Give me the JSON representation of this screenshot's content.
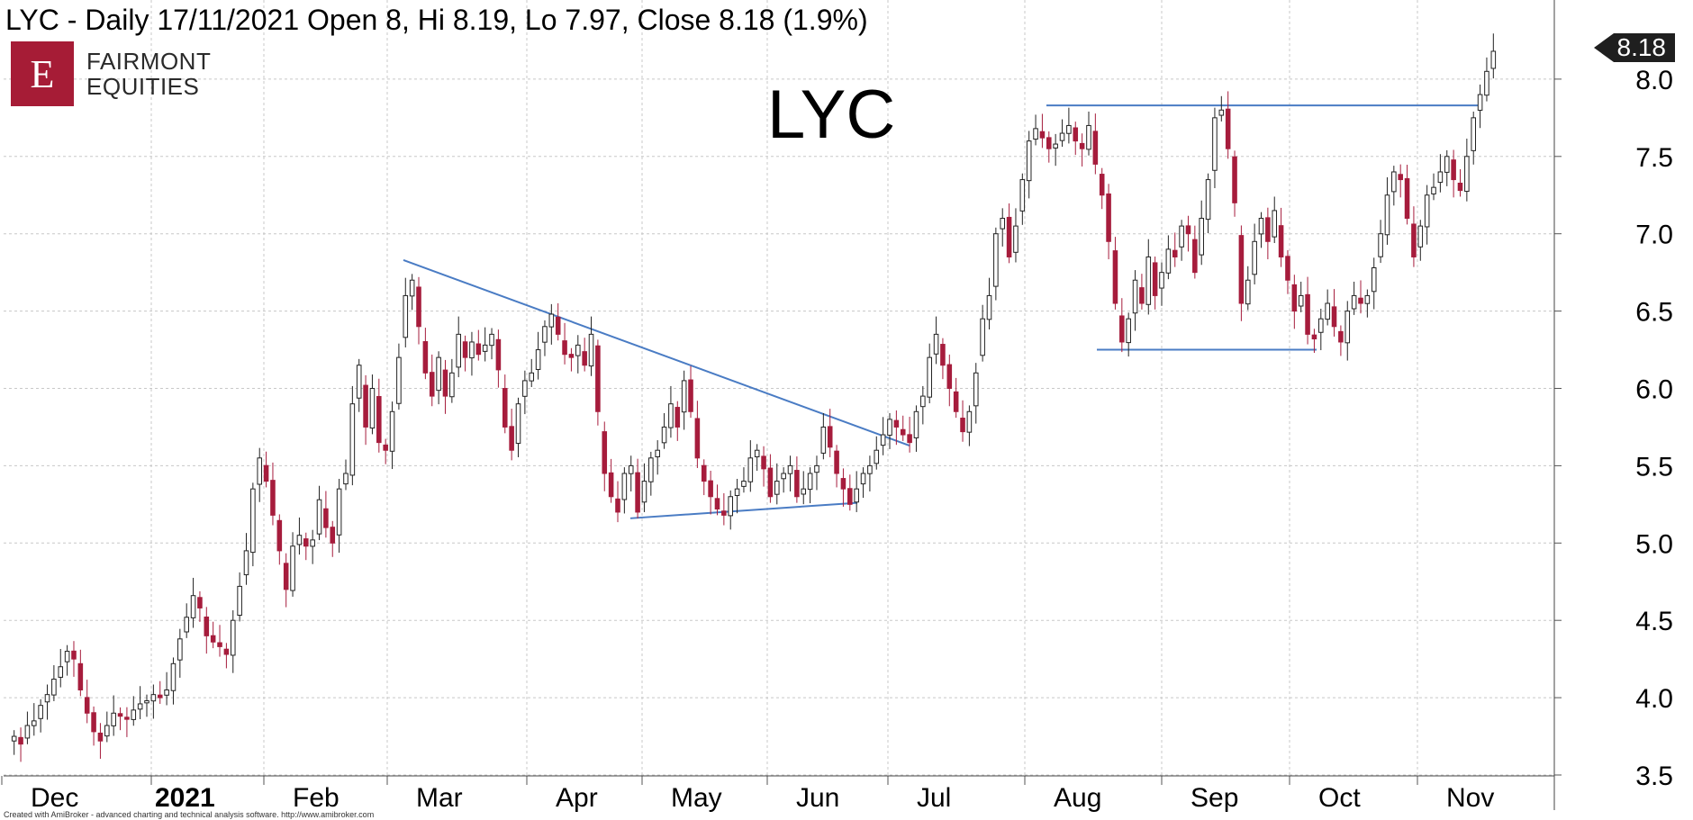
{
  "header": {
    "text": "LYC - Daily 17/11/2021 Open 8, Hi 8.19, Lo 7.97, Close 8.18 (1.9%)"
  },
  "logo": {
    "letter": "E",
    "line1": "FAIRMONT",
    "line2": "EQUITIES"
  },
  "footer": "Created with AmiBroker - advanced charting and technical analysis software. http://www.amibroker.com",
  "price_tag": "8.18",
  "colors": {
    "up_candle": "#ffffff",
    "down_candle": "#a61c3c",
    "trendline": "#4a7cc4",
    "grid": "#c8c8c8",
    "logo_bg": "#a61c36"
  },
  "chart_data": {
    "type": "candlestick",
    "title": "LYC",
    "xlabel": "",
    "ylabel": "",
    "ylim": [
      3.5,
      8.2
    ],
    "y_ticks": [
      "3.5",
      "4.0",
      "4.5",
      "5.0",
      "5.5",
      "6.0",
      "6.5",
      "7.0",
      "7.5",
      "8.0"
    ],
    "x_tick_labels": [
      "Dec",
      "2021",
      "Feb",
      "Mar",
      "Apr",
      "May",
      "Jun",
      "Jul",
      "Aug",
      "Sep",
      "Oct",
      "Nov"
    ],
    "grid": true,
    "start": [
      3.72,
      3.58,
      3.84,
      3.72
    ],
    "closes": [
      3.75,
      3.7,
      3.82,
      3.85,
      3.95,
      4.02,
      4.12,
      4.2,
      4.3,
      4.25,
      4.05,
      3.9,
      3.78,
      3.72,
      3.82,
      3.9,
      3.88,
      3.86,
      3.92,
      3.96,
      3.98,
      4.02,
      4.0,
      4.05,
      4.22,
      4.38,
      4.52,
      4.66,
      4.58,
      4.4,
      4.36,
      4.33,
      4.28,
      4.5,
      4.72,
      4.95,
      5.35,
      5.55,
      5.4,
      5.18,
      4.95,
      4.7,
      4.98,
      5.05,
      4.98,
      5.02,
      5.28,
      5.1,
      5.0,
      5.35,
      5.45,
      5.9,
      6.15,
      5.75,
      6.0,
      5.65,
      5.6,
      5.85,
      6.2,
      6.6,
      6.7,
      6.4,
      6.1,
      5.95,
      6.2,
      5.95,
      6.1,
      6.35,
      6.2,
      6.3,
      6.22,
      6.28,
      6.35,
      6.12,
      5.75,
      5.6,
      5.9,
      6.05,
      6.1,
      6.25,
      6.4,
      6.48,
      6.35,
      6.22,
      6.2,
      6.28,
      6.15,
      6.35,
      5.85,
      5.45,
      5.3,
      5.2,
      5.45,
      5.5,
      5.2,
      5.4,
      5.55,
      5.6,
      5.75,
      5.9,
      5.75,
      6.05,
      5.85,
      5.55,
      5.4,
      5.3,
      5.22,
      5.18,
      5.3,
      5.35,
      5.4,
      5.55,
      5.6,
      5.48,
      5.3,
      5.4,
      5.45,
      5.5,
      5.3,
      5.35,
      5.45,
      5.5,
      5.75,
      5.62,
      5.45,
      5.35,
      5.25,
      5.35,
      5.45,
      5.5,
      5.6,
      5.7,
      5.8,
      5.75,
      5.7,
      5.65,
      5.85,
      5.95,
      6.2,
      6.35,
      6.15,
      6.0,
      5.85,
      5.72,
      5.85,
      6.1,
      6.45,
      6.6,
      7.0,
      7.1,
      6.85,
      7.05,
      7.35,
      7.6,
      7.68,
      7.62,
      7.55,
      7.58,
      7.65,
      7.7,
      7.6,
      7.55,
      7.7,
      7.45,
      7.25,
      6.95,
      6.55,
      6.3,
      6.45,
      6.7,
      6.55,
      6.85,
      6.6,
      6.75,
      6.9,
      6.85,
      7.05,
      7.0,
      6.75,
      7.1,
      7.35,
      7.75,
      7.8,
      7.55,
      7.2,
      6.55,
      6.7,
      6.95,
      7.1,
      6.95,
      7.15,
      6.85,
      6.7,
      6.5,
      6.6,
      6.35,
      6.32,
      6.45,
      6.55,
      6.4,
      6.3,
      6.5,
      6.6,
      6.55,
      6.6,
      6.78,
      7.0,
      7.25,
      7.4,
      7.35,
      7.1,
      6.85,
      7.05,
      7.25,
      7.3,
      7.4,
      7.5,
      7.35,
      7.28,
      7.5,
      7.75,
      7.9,
      8.05,
      8.18
    ]
  }
}
